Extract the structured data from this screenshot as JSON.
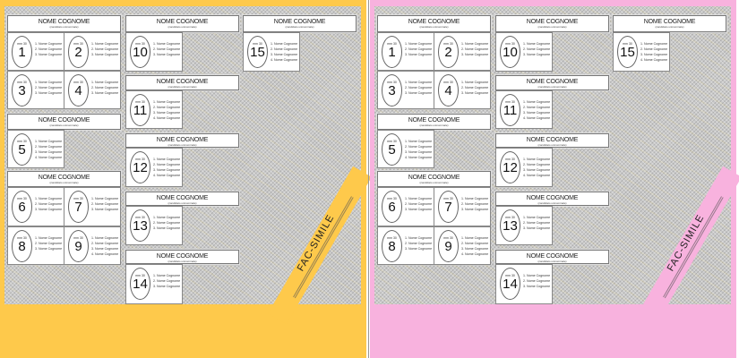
{
  "ballots": [
    {
      "color": "#fec94b",
      "name": "yellow"
    },
    {
      "color": "#f8b2de",
      "name": "pink"
    }
  ],
  "banner": {
    "label": "FAC-SIMILE"
  },
  "groups": [
    {
      "header": "NOME COGNOME",
      "subtitle": "(candidato uninominale)",
      "lists": [
        {
          "mm": "mm 30",
          "number": "1",
          "items": [
            "1. Nome Cognome",
            "2. Nome Cognome",
            "3. Nome Cognome"
          ]
        },
        {
          "mm": "mm 30",
          "number": "2",
          "items": [
            "1. Nome Cognome",
            "2. Nome Cognome",
            "3. Nome Cognome"
          ]
        },
        {
          "mm": "mm 30",
          "number": "3",
          "items": [
            "1. Nome Cognome",
            "2. Nome Cognome",
            "3. Nome Cognome"
          ]
        },
        {
          "mm": "mm 30",
          "number": "4",
          "items": [
            "1. Nome Cognome",
            "2. Nome Cognome",
            "3. Nome Cognome"
          ]
        }
      ]
    },
    {
      "header": "NOME COGNOME",
      "subtitle": "(candidato uninominale)",
      "lists": [
        {
          "mm": "mm 30",
          "number": "5",
          "items": [
            "1. Nome Cognome",
            "2. Nome Cognome",
            "3. Nome Cognome",
            "4. Nome Cognome"
          ]
        }
      ]
    },
    {
      "header": "NOME COGNOME",
      "subtitle": "(candidato uninominale)",
      "lists": [
        {
          "mm": "mm 30",
          "number": "6",
          "items": [
            "1. Nome Cognome",
            "2. Nome Cognome",
            "3. Nome Cognome"
          ]
        },
        {
          "mm": "mm 30",
          "number": "7",
          "items": [
            "1. Nome Cognome",
            "2. Nome Cognome",
            "3. Nome Cognome"
          ]
        },
        {
          "mm": "mm 30",
          "number": "8",
          "items": [
            "1. Nome Cognome",
            "2. Nome Cognome",
            "3. Nome Cognome"
          ]
        },
        {
          "mm": "mm 30",
          "number": "9",
          "items": [
            "1. Nome Cognome",
            "2. Nome Cognome",
            "3. Nome Cognome",
            "4. Nome Cognome"
          ]
        }
      ]
    },
    {
      "header": "NOME COGNOME",
      "subtitle": "(candidato uninominale)",
      "lists": [
        {
          "mm": "mm 30",
          "number": "10",
          "items": [
            "1. Nome Cognome",
            "2. Nome Cognome",
            "3. Nome Cognome"
          ]
        }
      ]
    },
    {
      "header": "NOME COGNOME",
      "subtitle": "(candidato uninominale)",
      "lists": [
        {
          "mm": "mm 30",
          "number": "11",
          "items": [
            "1. Nome Cognome",
            "2. Nome Cognome",
            "3. Nome Cognome",
            "4. Nome Cognome"
          ]
        }
      ]
    },
    {
      "header": "NOME COGNOME",
      "subtitle": "(candidato uninominale)",
      "lists": [
        {
          "mm": "mm 30",
          "number": "12",
          "items": [
            "1. Nome Cognome",
            "2. Nome Cognome",
            "3. Nome Cognome",
            "4. Nome Cognome"
          ]
        }
      ]
    },
    {
      "header": "NOME COGNOME",
      "subtitle": "(candidato uninominale)",
      "lists": [
        {
          "mm": "mm 30",
          "number": "13",
          "items": [
            "1. Nome Cognome",
            "2. Nome Cognome",
            "3. Nome Cognome"
          ]
        }
      ]
    },
    {
      "header": "NOME COGNOME",
      "subtitle": "(candidato uninominale)",
      "lists": [
        {
          "mm": "mm 30",
          "number": "14",
          "items": [
            "1. Nome Cognome",
            "2. Nome Cognome",
            "3. Nome Cognome"
          ]
        }
      ]
    },
    {
      "header": "NOME COGNOME",
      "subtitle": "(candidato uninominale)",
      "lists": [
        {
          "mm": "mm 30",
          "number": "15",
          "items": [
            "1. Nome Cognome",
            "2. Nome Cognome",
            "3. Nome Cognome",
            "4. Nome Cognome"
          ]
        }
      ]
    }
  ]
}
